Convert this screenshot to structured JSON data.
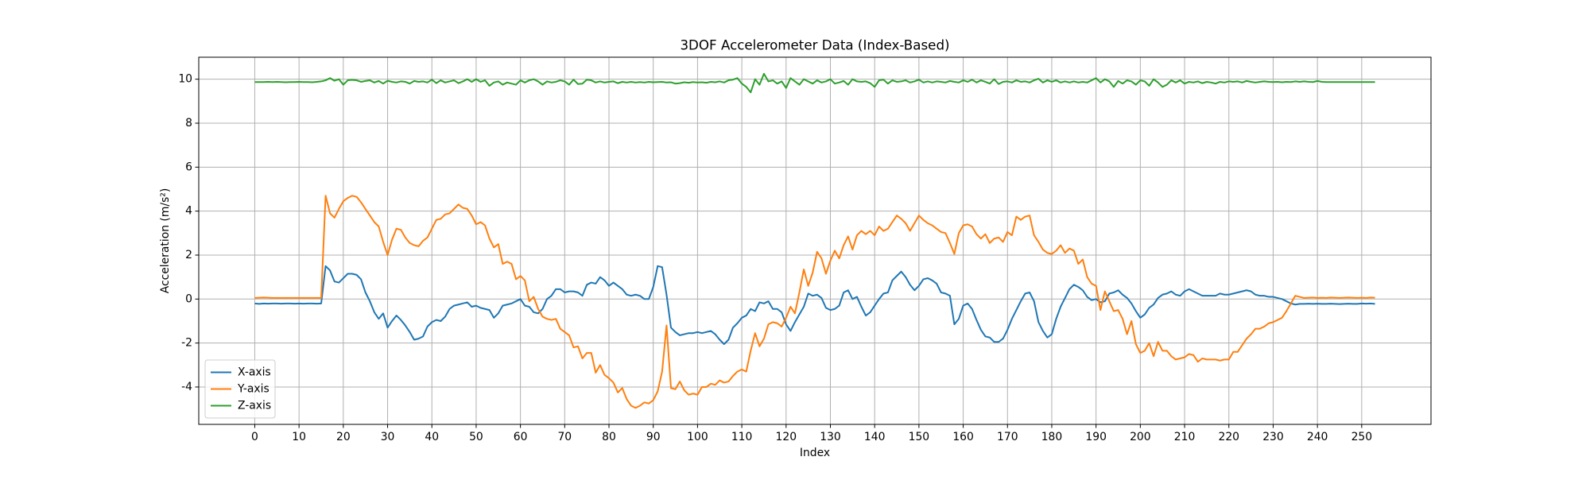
{
  "chart_data": {
    "type": "line",
    "title": "3DOF Accelerometer Data (Index-Based)",
    "x_label": "Index",
    "y_label": "Acceleration (m/s²)",
    "x": [
      0,
      1,
      2,
      3,
      4,
      5,
      6,
      7,
      8,
      9,
      10,
      11,
      12,
      13,
      14,
      15,
      16,
      17,
      18,
      19,
      20,
      21,
      22,
      23,
      24,
      25,
      26,
      27,
      28,
      29,
      30,
      31,
      32,
      33,
      34,
      35,
      36,
      37,
      38,
      39,
      40,
      41,
      42,
      43,
      44,
      45,
      46,
      47,
      48,
      49,
      50,
      51,
      52,
      53,
      54,
      55,
      56,
      57,
      58,
      59,
      60,
      61,
      62,
      63,
      64,
      65,
      66,
      67,
      68,
      69,
      70,
      71,
      72,
      73,
      74,
      75,
      76,
      77,
      78,
      79,
      80,
      81,
      82,
      83,
      84,
      85,
      86,
      87,
      88,
      89,
      90,
      91,
      92,
      93,
      94,
      95,
      96,
      97,
      98,
      99,
      100,
      101,
      102,
      103,
      104,
      105,
      106,
      107,
      108,
      109,
      110,
      111,
      112,
      113,
      114,
      115,
      116,
      117,
      118,
      119,
      120,
      121,
      122,
      123,
      124,
      125,
      126,
      127,
      128,
      129,
      130,
      131,
      132,
      133,
      134,
      135,
      136,
      137,
      138,
      139,
      140,
      141,
      142,
      143,
      144,
      145,
      146,
      147,
      148,
      149,
      150,
      151,
      152,
      153,
      154,
      155,
      156,
      157,
      158,
      159,
      160,
      161,
      162,
      163,
      164,
      165,
      166,
      167,
      168,
      169,
      170,
      171,
      172,
      173,
      174,
      175,
      176,
      177,
      178,
      179,
      180,
      181,
      182,
      183,
      184,
      185,
      186,
      187,
      188,
      189,
      190,
      191,
      192,
      193,
      194,
      195,
      196,
      197,
      198,
      199,
      200,
      201,
      202,
      203,
      204,
      205,
      206,
      207,
      208,
      209,
      210,
      211,
      212,
      213,
      214,
      215,
      216,
      217,
      218,
      219,
      220,
      221,
      222,
      223,
      224,
      225,
      226,
      227,
      228,
      229,
      230,
      231,
      232,
      233,
      234,
      235,
      236,
      237,
      238,
      239,
      240,
      241,
      242,
      243,
      244,
      245,
      246,
      247,
      248,
      249,
      250,
      251,
      252,
      253
    ],
    "series": [
      {
        "name": "X-axis",
        "color": "#1f77b4",
        "values": [
          -0.2,
          -0.22,
          -0.2,
          -0.21,
          -0.2,
          -0.2,
          -0.21,
          -0.2,
          -0.2,
          -0.21,
          -0.2,
          -0.21,
          -0.2,
          -0.2,
          -0.21,
          -0.2,
          1.5,
          1.3,
          0.8,
          0.75,
          0.95,
          1.15,
          1.15,
          1.1,
          0.9,
          0.3,
          -0.1,
          -0.6,
          -0.9,
          -0.65,
          -1.3,
          -1.0,
          -0.75,
          -0.95,
          -1.2,
          -1.5,
          -1.85,
          -1.8,
          -1.7,
          -1.25,
          -1.05,
          -0.95,
          -1.0,
          -0.8,
          -0.45,
          -0.3,
          -0.25,
          -0.2,
          -0.15,
          -0.35,
          -0.3,
          -0.4,
          -0.45,
          -0.5,
          -0.85,
          -0.65,
          -0.3,
          -0.25,
          -0.2,
          -0.1,
          0.0,
          -0.3,
          -0.35,
          -0.6,
          -0.65,
          -0.45,
          0.0,
          0.15,
          0.45,
          0.45,
          0.3,
          0.35,
          0.35,
          0.3,
          0.15,
          0.65,
          0.75,
          0.7,
          1.0,
          0.85,
          0.6,
          0.75,
          0.6,
          0.45,
          0.2,
          0.15,
          0.2,
          0.15,
          0.0,
          0.0,
          0.55,
          1.5,
          1.45,
          0.2,
          -1.3,
          -1.5,
          -1.65,
          -1.6,
          -1.55,
          -1.55,
          -1.5,
          -1.55,
          -1.5,
          -1.45,
          -1.6,
          -1.85,
          -2.05,
          -1.85,
          -1.3,
          -1.1,
          -0.85,
          -0.75,
          -0.45,
          -0.55,
          -0.15,
          -0.2,
          -0.1,
          -0.45,
          -0.45,
          -0.6,
          -1.15,
          -1.45,
          -1.05,
          -0.7,
          -0.35,
          0.25,
          0.15,
          0.2,
          0.05,
          -0.4,
          -0.5,
          -0.45,
          -0.3,
          0.3,
          0.4,
          0.0,
          0.1,
          -0.35,
          -0.75,
          -0.6,
          -0.3,
          0.0,
          0.25,
          0.3,
          0.85,
          1.05,
          1.25,
          1.0,
          0.65,
          0.4,
          0.6,
          0.9,
          0.95,
          0.85,
          0.7,
          0.3,
          0.25,
          0.15,
          -1.15,
          -0.9,
          -0.3,
          -0.2,
          -0.45,
          -0.95,
          -1.4,
          -1.7,
          -1.75,
          -1.95,
          -1.95,
          -1.8,
          -1.4,
          -0.9,
          -0.5,
          -0.1,
          0.25,
          0.3,
          -0.1,
          -1.05,
          -1.45,
          -1.75,
          -1.6,
          -0.9,
          -0.35,
          0.05,
          0.45,
          0.65,
          0.55,
          0.4,
          0.1,
          -0.05,
          0.0,
          -0.15,
          -0.1,
          0.25,
          0.3,
          0.4,
          0.2,
          0.05,
          -0.2,
          -0.55,
          -0.85,
          -0.7,
          -0.4,
          -0.25,
          0.05,
          0.2,
          0.25,
          0.35,
          0.2,
          0.15,
          0.35,
          0.45,
          0.35,
          0.25,
          0.15,
          0.15,
          0.15,
          0.15,
          0.25,
          0.2,
          0.2,
          0.25,
          0.3,
          0.35,
          0.4,
          0.35,
          0.2,
          0.15,
          0.15,
          0.1,
          0.1,
          0.05,
          0.0,
          -0.1,
          -0.2,
          -0.25,
          -0.22,
          -0.22,
          -0.21,
          -0.22,
          -0.21,
          -0.22,
          -0.22,
          -0.21,
          -0.22,
          -0.23,
          -0.22,
          -0.21,
          -0.22,
          -0.22,
          -0.2,
          -0.21,
          -0.2,
          -0.22
        ]
      },
      {
        "name": "Y-axis",
        "color": "#ff7f0e",
        "values": [
          0.05,
          0.06,
          0.07,
          0.06,
          0.05,
          0.05,
          0.05,
          0.05,
          0.05,
          0.05,
          0.05,
          0.05,
          0.05,
          0.05,
          0.05,
          0.05,
          4.7,
          3.9,
          3.7,
          4.1,
          4.45,
          4.6,
          4.7,
          4.65,
          4.4,
          4.1,
          3.8,
          3.5,
          3.3,
          2.6,
          2.0,
          2.7,
          3.2,
          3.15,
          2.8,
          2.55,
          2.45,
          2.4,
          2.65,
          2.8,
          3.2,
          3.6,
          3.65,
          3.85,
          3.9,
          4.1,
          4.3,
          4.15,
          4.1,
          3.8,
          3.4,
          3.5,
          3.35,
          2.75,
          2.35,
          2.5,
          1.6,
          1.7,
          1.6,
          0.9,
          1.05,
          0.85,
          -0.1,
          0.1,
          -0.45,
          -0.8,
          -0.9,
          -0.95,
          -0.9,
          -1.35,
          -1.5,
          -1.65,
          -2.2,
          -2.15,
          -2.7,
          -2.45,
          -2.45,
          -3.35,
          -3.0,
          -3.45,
          -3.6,
          -3.8,
          -4.25,
          -4.05,
          -4.55,
          -4.85,
          -4.95,
          -4.85,
          -4.7,
          -4.75,
          -4.6,
          -4.2,
          -3.3,
          -1.2,
          -4.05,
          -4.1,
          -3.75,
          -4.15,
          -4.35,
          -4.3,
          -4.35,
          -4.0,
          -4.0,
          -3.85,
          -3.9,
          -3.7,
          -3.8,
          -3.75,
          -3.5,
          -3.3,
          -3.2,
          -3.3,
          -2.35,
          -1.55,
          -2.15,
          -1.8,
          -1.15,
          -1.05,
          -1.1,
          -1.25,
          -0.85,
          -0.35,
          -0.65,
          0.3,
          1.35,
          0.6,
          1.2,
          2.15,
          1.85,
          1.15,
          1.75,
          2.2,
          1.85,
          2.45,
          2.85,
          2.25,
          2.9,
          3.1,
          2.95,
          3.1,
          2.9,
          3.3,
          3.1,
          3.2,
          3.5,
          3.8,
          3.65,
          3.45,
          3.1,
          3.45,
          3.8,
          3.6,
          3.45,
          3.35,
          3.2,
          3.05,
          3.0,
          2.55,
          2.05,
          3.0,
          3.35,
          3.4,
          3.3,
          2.95,
          2.75,
          2.95,
          2.55,
          2.75,
          2.8,
          2.6,
          3.05,
          2.9,
          3.75,
          3.6,
          3.75,
          3.8,
          2.9,
          2.6,
          2.25,
          2.1,
          2.05,
          2.2,
          2.45,
          2.1,
          2.3,
          2.2,
          1.6,
          1.8,
          1.0,
          0.7,
          0.6,
          -0.5,
          0.35,
          -0.1,
          -0.55,
          -0.5,
          -0.9,
          -1.6,
          -1.0,
          -2.05,
          -2.45,
          -2.35,
          -2.0,
          -2.6,
          -1.95,
          -2.35,
          -2.35,
          -2.6,
          -2.75,
          -2.7,
          -2.65,
          -2.5,
          -2.55,
          -2.85,
          -2.7,
          -2.75,
          -2.75,
          -2.75,
          -2.8,
          -2.75,
          -2.75,
          -2.4,
          -2.4,
          -2.1,
          -1.8,
          -1.6,
          -1.35,
          -1.35,
          -1.25,
          -1.1,
          -1.05,
          -0.95,
          -0.85,
          -0.55,
          -0.2,
          0.15,
          0.1,
          0.05,
          0.06,
          0.07,
          0.05,
          0.06,
          0.05,
          0.07,
          0.06,
          0.05,
          0.06,
          0.07,
          0.06,
          0.05,
          0.06,
          0.05,
          0.07,
          0.06
        ]
      },
      {
        "name": "Z-axis",
        "color": "#2ca02c",
        "values": [
          9.87,
          9.87,
          9.87,
          9.88,
          9.87,
          9.88,
          9.87,
          9.86,
          9.87,
          9.87,
          9.88,
          9.87,
          9.87,
          9.86,
          9.88,
          9.9,
          9.95,
          10.05,
          9.93,
          10.0,
          9.75,
          9.95,
          9.97,
          9.95,
          9.88,
          9.92,
          9.95,
          9.85,
          9.92,
          9.8,
          9.93,
          9.88,
          9.85,
          9.9,
          9.88,
          9.8,
          9.92,
          9.88,
          9.9,
          9.85,
          9.98,
          9.82,
          9.95,
          9.85,
          9.9,
          9.95,
          9.82,
          9.9,
          10.0,
          9.88,
          10.0,
          9.88,
          9.95,
          9.7,
          9.85,
          9.9,
          9.75,
          9.85,
          9.8,
          9.75,
          9.95,
          9.85,
          9.95,
          10.0,
          9.9,
          9.75,
          9.9,
          9.85,
          9.88,
          9.95,
          9.9,
          9.75,
          9.98,
          9.78,
          9.8,
          9.98,
          9.95,
          9.85,
          9.9,
          9.85,
          9.88,
          9.9,
          9.82,
          9.88,
          9.85,
          9.88,
          9.85,
          9.87,
          9.85,
          9.88,
          9.86,
          9.87,
          9.88,
          9.85,
          9.86,
          9.8,
          9.82,
          9.86,
          9.84,
          9.87,
          9.85,
          9.86,
          9.84,
          9.88,
          9.86,
          9.9,
          9.85,
          9.95,
          9.98,
          10.05,
          9.8,
          9.65,
          9.4,
          10.0,
          9.75,
          10.25,
          9.9,
          9.95,
          9.8,
          9.9,
          9.6,
          10.05,
          9.9,
          9.75,
          10.0,
          9.9,
          9.8,
          9.95,
          9.85,
          9.9,
          10.0,
          9.8,
          9.85,
          9.92,
          9.75,
          10.0,
          9.9,
          9.88,
          9.9,
          9.82,
          9.65,
          9.95,
          9.98,
          9.8,
          9.95,
          9.88,
          9.9,
          9.95,
          9.85,
          9.9,
          9.98,
          9.85,
          9.9,
          9.85,
          9.9,
          9.88,
          9.85,
          9.92,
          9.88,
          9.85,
          9.95,
          9.88,
          9.98,
          9.85,
          9.95,
          9.88,
          9.8,
          10.0,
          9.78,
          9.88,
          9.9,
          9.85,
          9.95,
          9.88,
          9.9,
          9.85,
          9.95,
          10.02,
          9.85,
          9.95,
          9.88,
          9.95,
          9.85,
          9.9,
          9.85,
          9.9,
          9.85,
          9.88,
          9.85,
          9.95,
          10.05,
          9.85,
          10.0,
          9.9,
          9.65,
          9.92,
          9.8,
          9.95,
          9.9,
          9.75,
          9.95,
          9.9,
          9.7,
          10.0,
          9.85,
          9.65,
          9.75,
          9.95,
          9.85,
          9.95,
          9.8,
          9.88,
          9.85,
          9.9,
          9.82,
          9.88,
          9.85,
          9.8,
          9.88,
          9.85,
          9.9,
          9.88,
          9.9,
          9.85,
          9.92,
          9.88,
          9.85,
          9.88,
          9.9,
          9.88,
          9.87,
          9.88,
          9.86,
          9.88,
          9.87,
          9.9,
          9.88,
          9.9,
          9.88,
          9.87,
          9.92,
          9.88,
          9.87,
          9.87,
          9.87,
          9.87,
          9.87,
          9.87,
          9.87,
          9.87,
          9.87,
          9.87,
          9.87,
          9.87
        ]
      }
    ],
    "xlim": [
      -12.65,
      265.65
    ],
    "xticks": [
      0,
      10,
      20,
      30,
      40,
      50,
      60,
      70,
      80,
      90,
      100,
      110,
      120,
      130,
      140,
      150,
      160,
      170,
      180,
      190,
      200,
      210,
      220,
      230,
      240,
      250
    ],
    "ylim": [
      -5.7,
      11.0
    ],
    "yticks": [
      -4,
      -2,
      0,
      2,
      4,
      6,
      8,
      10
    ],
    "grid": true,
    "legend": "lower left"
  }
}
